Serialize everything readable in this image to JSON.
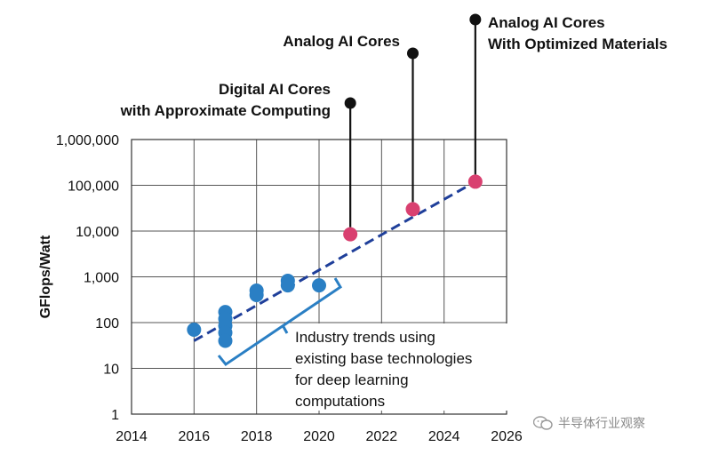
{
  "chart_data": {
    "type": "scatter",
    "title": "",
    "xlabel": "",
    "ylabel": "GFlops/Watt",
    "xlim": [
      2014,
      2026
    ],
    "ylim": [
      1,
      1000000
    ],
    "yscale": "log",
    "grid": true,
    "x_ticks": [
      2014,
      2016,
      2018,
      2020,
      2022,
      2024,
      2026
    ],
    "x_tick_labels": [
      "2014",
      "2016",
      "2018",
      "2020",
      "2022",
      "2024",
      "2026"
    ],
    "y_ticks": [
      1,
      10,
      100,
      1000,
      10000,
      100000,
      1000000
    ],
    "y_tick_labels": [
      "1",
      "10",
      "100",
      "1,000",
      "10,000",
      "100,000",
      "1,000,000"
    ],
    "series": [
      {
        "name": "Industry trends",
        "color": "#2a7fc4",
        "points": [
          {
            "x": 2016,
            "y": 70
          },
          {
            "x": 2017,
            "y": 170
          },
          {
            "x": 2017,
            "y": 120
          },
          {
            "x": 2017,
            "y": 85
          },
          {
            "x": 2017,
            "y": 60
          },
          {
            "x": 2017,
            "y": 40
          },
          {
            "x": 2018,
            "y": 500
          },
          {
            "x": 2018,
            "y": 400
          },
          {
            "x": 2019,
            "y": 820
          },
          {
            "x": 2019,
            "y": 650
          },
          {
            "x": 2020,
            "y": 650
          }
        ]
      },
      {
        "name": "AI Cores",
        "color": "#d94070",
        "points": [
          {
            "x": 2021,
            "y": 8500
          },
          {
            "x": 2023,
            "y": 30000
          },
          {
            "x": 2025,
            "y": 120000
          }
        ]
      }
    ],
    "trendline": {
      "x1": 2016,
      "y1": 40,
      "x2": 2025,
      "y2": 120000,
      "color": "#1f3f9a",
      "style": "dashed"
    },
    "annotations": {
      "callouts": [
        {
          "name": "digital",
          "x": 2021,
          "y": 8500,
          "lines": [
            "Digital AI Cores",
            "with Approximate Computing"
          ]
        },
        {
          "name": "analog",
          "x": 2023,
          "y": 30000,
          "lines": [
            "Analog AI Cores"
          ]
        },
        {
          "name": "analog-optimized",
          "x": 2025,
          "y": 120000,
          "lines": [
            "Analog AI Cores",
            "With Optimized Materials"
          ]
        }
      ],
      "trend_note": [
        "Industry trends using",
        "existing base technologies",
        "for deep learning",
        "computations"
      ]
    }
  },
  "watermark": {
    "text": "半导体行业观察",
    "icon": "wechat-icon"
  }
}
